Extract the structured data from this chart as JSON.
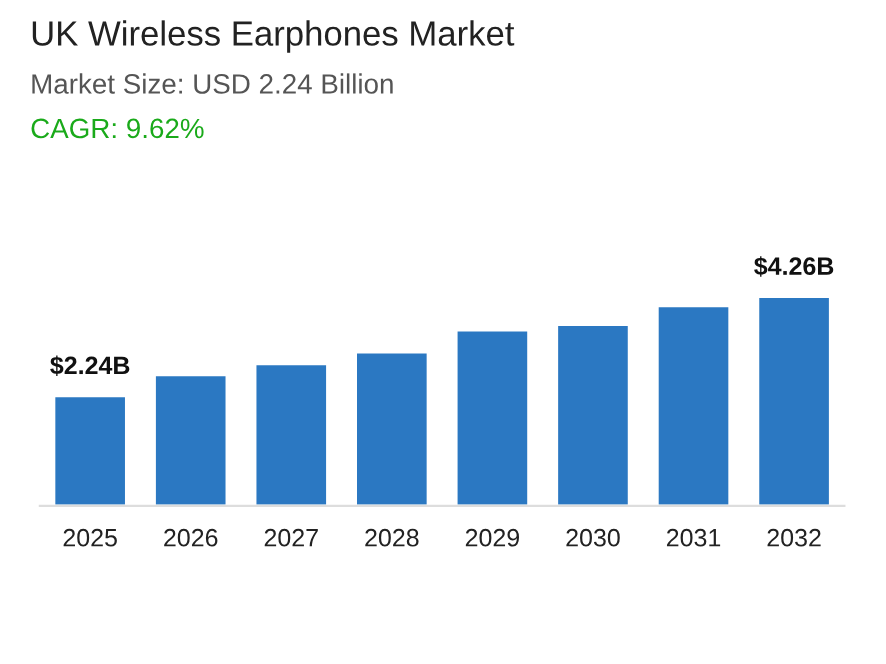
{
  "chart_data": {
    "type": "bar",
    "title": "UK Wireless Earphones Market",
    "subtitle": "Market Size: USD 2.24 Billion",
    "annotations": [
      "CAGR: 9.62%"
    ],
    "categories": [
      "2025",
      "2026",
      "2027",
      "2028",
      "2029",
      "2030",
      "2031",
      "2032"
    ],
    "values": [
      2.24,
      2.67,
      2.89,
      3.13,
      3.58,
      3.69,
      4.07,
      4.26
    ],
    "value_labels": [
      "$2.24B",
      null,
      null,
      null,
      null,
      null,
      null,
      "$4.26B"
    ],
    "color": "#2b78c2",
    "tick_labels": "x",
    "grid": false,
    "legend": false
  }
}
